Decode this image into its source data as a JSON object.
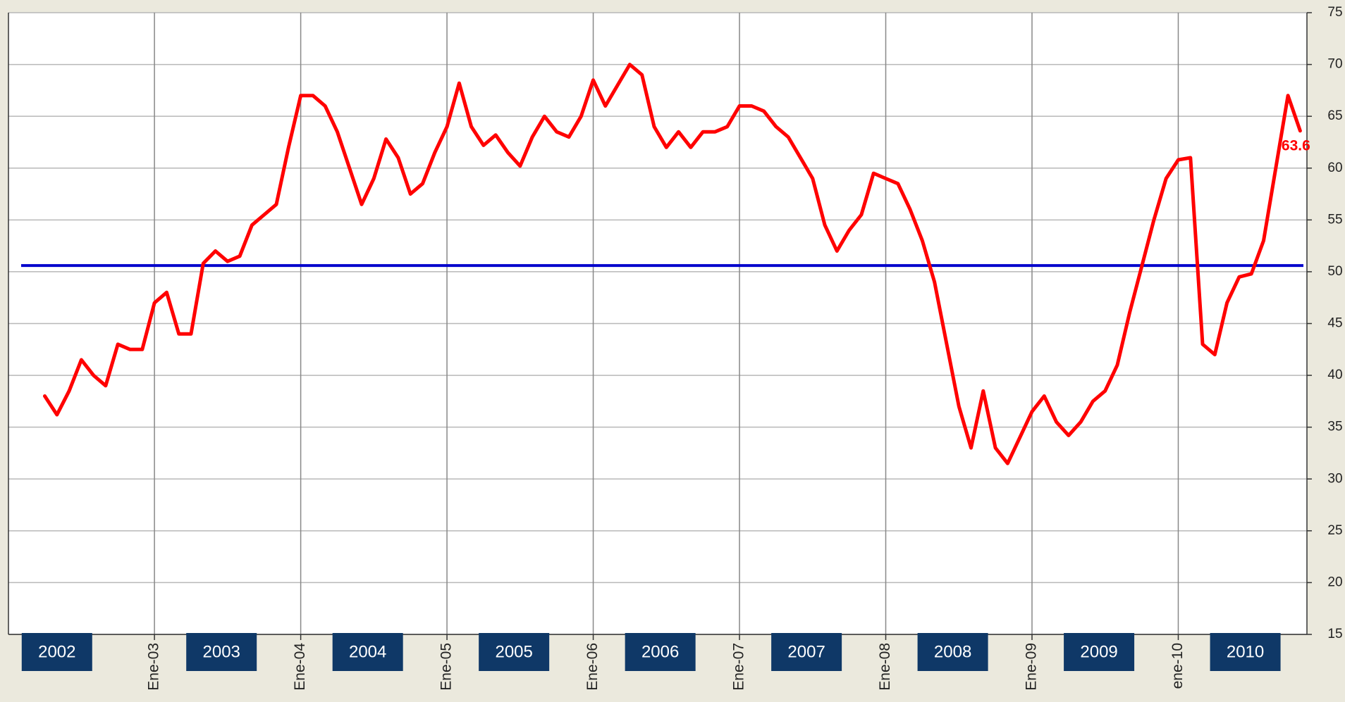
{
  "chart_data": {
    "type": "line",
    "categories": [
      null,
      null,
      null,
      null,
      null,
      null,
      null,
      null,
      null,
      "Ene-03",
      null,
      null,
      null,
      null,
      null,
      null,
      null,
      null,
      null,
      null,
      null,
      "Ene-04",
      null,
      null,
      null,
      null,
      null,
      null,
      null,
      null,
      null,
      null,
      null,
      "Ene-05",
      null,
      null,
      null,
      null,
      null,
      null,
      null,
      null,
      null,
      null,
      null,
      "Ene-06",
      null,
      null,
      null,
      null,
      null,
      null,
      null,
      null,
      null,
      null,
      null,
      "Ene-07",
      null,
      null,
      null,
      null,
      null,
      null,
      null,
      null,
      null,
      null,
      null,
      "Ene-08",
      null,
      null,
      null,
      null,
      null,
      null,
      null,
      null,
      null,
      null,
      null,
      "Ene-09",
      null,
      null,
      null,
      null,
      null,
      null,
      null,
      null,
      null,
      null,
      null,
      "ene-10",
      null,
      null,
      null,
      null,
      null,
      null,
      null,
      null,
      null,
      null
    ],
    "values": [
      38,
      36.2,
      38.5,
      41.5,
      40,
      39,
      43,
      42.5,
      42.5,
      47,
      48,
      44,
      44,
      50.8,
      52,
      51,
      51.5,
      54.5,
      55.5,
      56.5,
      62,
      67,
      67,
      66,
      63.5,
      60,
      56.5,
      59,
      62.8,
      61,
      57.5,
      58.5,
      61.5,
      64,
      68.2,
      64,
      62.2,
      63.2,
      61.5,
      60.2,
      63,
      65,
      63.5,
      63,
      65,
      68.5,
      66,
      68,
      70,
      69,
      64,
      62,
      63.5,
      62,
      63.5,
      63.5,
      64,
      66,
      66,
      65.5,
      64,
      63,
      61,
      59,
      54.5,
      52,
      54,
      55.5,
      59.5,
      59,
      58.5,
      56,
      53,
      49,
      43,
      37,
      33,
      38.5,
      33,
      31.5,
      34,
      36.5,
      38,
      35.5,
      34.2,
      35.5,
      37.5,
      38.5,
      41,
      46,
      50.5,
      55,
      59,
      60.8,
      61,
      43,
      42,
      47,
      49.5,
      49.8,
      53,
      60,
      67,
      63.6
    ],
    "color": "#ff0000",
    "reference_line": {
      "value": 50.6,
      "color": "#0000cc"
    },
    "year_labels": [
      "2002",
      "2003",
      "2004",
      "2005",
      "2006",
      "2007",
      "2008",
      "2009",
      "2010"
    ],
    "ylim": [
      15,
      75
    ],
    "yticks": [
      15,
      20,
      25,
      30,
      35,
      40,
      45,
      50,
      55,
      60,
      65,
      70,
      75
    ],
    "grid": true
  }
}
